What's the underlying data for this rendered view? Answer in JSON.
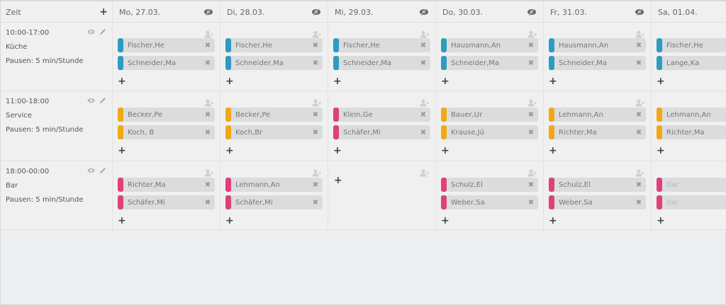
{
  "colors": {
    "kueche": "#2e9cbf",
    "service": "#f0a814",
    "bar": "#e0407a",
    "chip_bg": "#dadcde",
    "page_bg": "#eceef0"
  },
  "header": {
    "zeit_label": "Zeit",
    "add_icon": "+",
    "days": [
      {
        "label": "Mo, 27.03.",
        "icon": "eye-slash-icon"
      },
      {
        "label": "Di, 28.03.",
        "icon": "eye-slash-icon"
      },
      {
        "label": "Mi, 29.03.",
        "icon": "eye-slash-icon"
      },
      {
        "label": "Do, 30.03.",
        "icon": "eye-slash-icon"
      },
      {
        "label": "Fr, 31.03.",
        "icon": "eye-slash-icon"
      },
      {
        "label": "Sa, 01.04.",
        "icon": ""
      }
    ]
  },
  "shifts": [
    {
      "time": "10:00-17:00",
      "name": "Küche",
      "pause": "Pausen: 5 min/Stunde",
      "color": "#2e9cbf",
      "days": [
        [
          "Fischer,He",
          "Schneider,Ma"
        ],
        [
          "Fischer,He",
          "Schneider,Ma"
        ],
        [
          "Fischer,He",
          "Schneider,Ma"
        ],
        [
          "Hausmann,An",
          "Schneider,Ma"
        ],
        [
          "Hausmann,An",
          "Schneider,Ma"
        ],
        [
          "Fischer,He",
          "Lange,Ka"
        ]
      ]
    },
    {
      "time": "11:00-18:00",
      "name": "Service",
      "pause": "Pausen: 5 min/Stunde",
      "color": "#f0a814",
      "days": [
        [
          "Becker,Pe",
          "Koch, B"
        ],
        [
          "Becker,Pe",
          "Koch,Br"
        ],
        [
          "Klein,Ge",
          "Schäfer,Mi"
        ],
        [
          "Bauer,Ur",
          "Krause,Jü"
        ],
        [
          "Lehmann,An",
          "Richter,Ma"
        ],
        [
          "Lehmann,An",
          "Richter,Ma"
        ]
      ],
      "day_colors": [
        "#f0a814",
        "#f0a814",
        "#e0407a",
        "#f0a814",
        "#f0a814",
        "#f0a814"
      ]
    },
    {
      "time": "18:00-00:00",
      "name": "Bar",
      "pause": "Pausen: 5 min/Stunde",
      "color": "#e0407a",
      "days": [
        [
          "Richter,Ma",
          "Schäfer,Mi"
        ],
        [
          "Lehmann,An",
          "Schäfer,Mi"
        ],
        [],
        [
          "Schulz,El",
          "Weber,Sa"
        ],
        [
          "Schulz,El",
          "Weber,Sa"
        ],
        [
          "Bar",
          "Bar"
        ]
      ]
    }
  ],
  "icons": {
    "remove": "✖",
    "add": "+",
    "view": "eye-icon",
    "edit": "pencil-icon",
    "assign": "user-add-icon"
  }
}
